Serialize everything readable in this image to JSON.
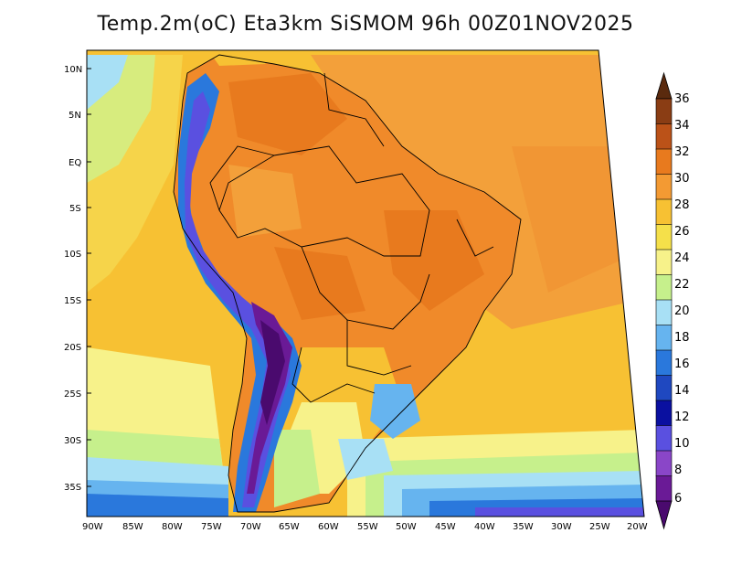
{
  "map": {
    "title": "Temp.2m(oC) Eta3km SiSMOM 96h 00Z01NOV2025",
    "variable": "2m temperature (oC)",
    "model": "Eta3km",
    "lat_labels": [
      "10N",
      "5N",
      "EQ",
      "5S",
      "10S",
      "15S",
      "20S",
      "25S",
      "30S",
      "35S"
    ],
    "lon_labels": [
      "90W",
      "85W",
      "80W",
      "75W",
      "70W",
      "65W",
      "60W",
      "55W",
      "50W",
      "45W",
      "40W",
      "35W",
      "30W",
      "25W",
      "20W"
    ]
  },
  "colorbar": {
    "labels": [
      "36",
      "34",
      "32",
      "30",
      "28",
      "26",
      "24",
      "22",
      "20",
      "18",
      "16",
      "14",
      "12",
      "10",
      "8",
      "6"
    ],
    "colors": [
      "#5a2a0e",
      "#8a3d14",
      "#bb5218",
      "#e87a1e",
      "#f39a33",
      "#f7c133",
      "#f5e04a",
      "#f7f28a",
      "#c6f08c",
      "#a8e0f5",
      "#66b4ef",
      "#2a78dc",
      "#1f48c0",
      "#0a10a0",
      "#5a50e0",
      "#8a46c8",
      "#6a1a96",
      "#4a0a6e"
    ]
  }
}
